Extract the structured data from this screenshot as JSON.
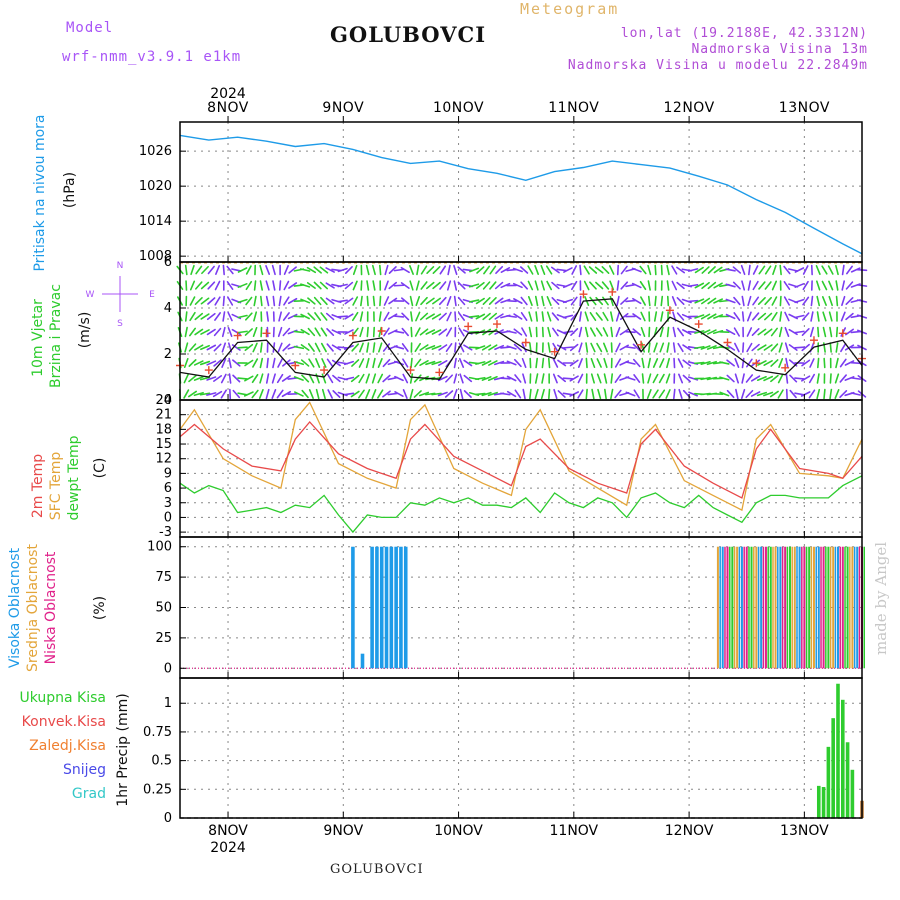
{
  "header": {
    "model_label": "Model",
    "model_name": "wrf-nmm_v3.9.1  e1km",
    "station": "GOLUBOVCI",
    "meteogram": "Meteogram",
    "lonlat": "lon,lat (19.2188E, 42.3312N)",
    "altitude": "Nadmorska Visina 13m",
    "model_altitude": "Nadmorska Visina u modelu 22.2849m"
  },
  "footer": {
    "station": "GOLUBOVCI",
    "made_by": "made by Angel"
  },
  "colors": {
    "pressure": "#1e9be8",
    "wind_speed": "#111111",
    "gust_marks": "#e84a2f",
    "temp2m": "#e84a4a",
    "sfc_temp": "#e3a53a",
    "dewpoint": "#2ecc2e",
    "high_cloud": "#1e9be8",
    "mid_cloud": "#e3a53a",
    "low_cloud": "#e0218a",
    "precip_total": "#2ecc2e",
    "precip_convective": "#e84a4a",
    "precip_large_scale": "#f08030",
    "snow": "#4a4ae8",
    "graupel": "#33c8c8"
  },
  "chart_data": [
    {
      "type": "line",
      "panel": "pressure",
      "ylabel": [
        "Pritisak na nivou mora",
        "(hPa)"
      ],
      "ylim": [
        1007,
        1031
      ],
      "yticks": [
        1008,
        1014,
        1020,
        1026
      ],
      "x_top_year": "2024",
      "x_days": [
        "8NOV",
        "9NOV",
        "10NOV",
        "11NOV",
        "12NOV",
        "13NOV"
      ],
      "grid": true,
      "series": [
        {
          "name": "Pritisak na nivou mora",
          "x": [
            0,
            6,
            12,
            18,
            24,
            30,
            36,
            42,
            48,
            54,
            60,
            66,
            72,
            78,
            84,
            90,
            96,
            102,
            108,
            114,
            120,
            126,
            132,
            138,
            142
          ],
          "values": [
            1028.7,
            1027.9,
            1028.4,
            1027.7,
            1026.8,
            1027.3,
            1026.3,
            1024.9,
            1023.9,
            1024.3,
            1023.0,
            1022.2,
            1021.0,
            1022.5,
            1023.2,
            1024.3,
            1023.7,
            1023.1,
            1021.7,
            1020.2,
            1017.7,
            1015.5,
            1012.8,
            1010.1,
            1008.4
          ]
        }
      ]
    },
    {
      "type": "line",
      "panel": "wind",
      "ylabel": [
        "10m Vjetar",
        "Brzina i Pravac",
        "(m/s)"
      ],
      "compass": [
        "N",
        "W",
        "E",
        "S"
      ],
      "ylim": [
        0,
        6
      ],
      "yticks": [
        0,
        2,
        4,
        6
      ],
      "grid": true,
      "series": [
        {
          "name": "Brzina",
          "x": [
            0,
            6,
            12,
            18,
            24,
            30,
            36,
            42,
            48,
            54,
            60,
            66,
            72,
            78,
            84,
            90,
            96,
            102,
            108,
            114,
            120,
            126,
            132,
            138,
            142
          ],
          "values": [
            1.2,
            1.0,
            2.5,
            2.6,
            1.2,
            1.0,
            2.5,
            2.7,
            1.0,
            0.9,
            2.9,
            3.0,
            2.2,
            1.8,
            4.3,
            4.4,
            2.1,
            3.6,
            3.0,
            2.2,
            1.3,
            1.1,
            2.3,
            2.6,
            1.5
          ]
        }
      ],
      "barbs_note": "colored direction arrows"
    },
    {
      "type": "line",
      "panel": "temperature",
      "ylabel": [
        "2m Temp",
        "SFC Temp",
        "dewpt Temp",
        "(C)"
      ],
      "ylim": [
        -4,
        24
      ],
      "yticks": [
        -3,
        0,
        3,
        6,
        9,
        12,
        15,
        18,
        21,
        24
      ],
      "grid": true,
      "series": [
        {
          "name": "2m Temp",
          "x": [
            0,
            3,
            9,
            15,
            21,
            24,
            27,
            33,
            39,
            45,
            48,
            51,
            57,
            63,
            69,
            72,
            75,
            81,
            87,
            93,
            96,
            99,
            105,
            111,
            117,
            120,
            123,
            129,
            135,
            138,
            142
          ],
          "values": [
            16.5,
            19.0,
            14.0,
            10.5,
            9.5,
            16.0,
            19.5,
            13.0,
            10.0,
            8.0,
            16.0,
            19.0,
            12.5,
            9.5,
            6.5,
            14.5,
            16.0,
            10.0,
            7.0,
            5.0,
            15.0,
            18.0,
            10.5,
            7.0,
            4.0,
            14.0,
            18.0,
            10.0,
            9.0,
            8.0,
            12.5
          ]
        },
        {
          "name": "SFC Temp",
          "x": [
            0,
            3,
            9,
            15,
            21,
            24,
            27,
            33,
            39,
            45,
            48,
            51,
            57,
            63,
            69,
            72,
            75,
            81,
            87,
            93,
            96,
            99,
            105,
            111,
            117,
            120,
            123,
            129,
            135,
            138,
            142
          ],
          "values": [
            18.0,
            22.0,
            12.0,
            8.5,
            6.0,
            20.0,
            23.5,
            11.0,
            8.0,
            6.0,
            20.0,
            23.0,
            10.0,
            7.0,
            4.5,
            18.0,
            22.0,
            9.5,
            6.0,
            2.5,
            16.0,
            19.0,
            7.5,
            4.5,
            1.5,
            16.0,
            19.0,
            9.0,
            8.5,
            8.0,
            16.0
          ]
        },
        {
          "name": "dewpt Temp",
          "x": [
            0,
            3,
            6,
            9,
            12,
            15,
            18,
            21,
            24,
            27,
            30,
            33,
            36,
            39,
            42,
            45,
            48,
            51,
            54,
            57,
            60,
            63,
            66,
            69,
            72,
            75,
            78,
            81,
            84,
            87,
            90,
            93,
            96,
            99,
            102,
            105,
            108,
            111,
            114,
            117,
            120,
            123,
            126,
            129,
            132,
            135,
            138,
            142
          ],
          "values": [
            7.0,
            5.0,
            6.5,
            5.5,
            1.0,
            1.5,
            2.0,
            1.0,
            2.5,
            2.0,
            4.5,
            0.5,
            -3.0,
            0.5,
            0.0,
            0.0,
            3.0,
            2.5,
            4.0,
            3.0,
            4.0,
            2.5,
            2.5,
            2.0,
            4.0,
            1.0,
            5.0,
            3.0,
            2.0,
            4.0,
            3.0,
            0.0,
            4.0,
            5.0,
            3.0,
            2.0,
            4.5,
            2.0,
            0.5,
            -1.0,
            3.0,
            4.5,
            4.5,
            4.0,
            4.0,
            4.0,
            6.5,
            8.5
          ]
        }
      ]
    },
    {
      "type": "bar",
      "panel": "clouds",
      "ylabel": [
        "Visoka Oblacnost",
        "Srednja Oblacnost",
        "Niska Oblacnost",
        "(%)"
      ],
      "ylim": [
        -8,
        108
      ],
      "yticks": [
        0,
        25,
        50,
        75,
        100
      ],
      "grid": true,
      "series": [
        {
          "name": "Visoka Oblacnost",
          "x": [
            36,
            38,
            40,
            41,
            42,
            43,
            44,
            45,
            46,
            47
          ],
          "values": [
            100,
            12,
            100,
            100,
            100,
            100,
            100,
            100,
            100,
            100
          ]
        },
        {
          "name": "Srednja Oblacnost",
          "x": [
            112,
            113,
            114,
            115,
            116,
            117,
            118,
            119,
            120,
            121,
            122,
            123,
            124,
            125,
            126,
            127,
            128,
            129,
            130,
            131,
            132,
            133,
            134,
            135,
            136,
            137,
            138,
            139,
            140,
            141,
            142
          ],
          "values": [
            100,
            100,
            100,
            100,
            100,
            100,
            100,
            100,
            100,
            100,
            100,
            100,
            100,
            100,
            100,
            100,
            100,
            100,
            100,
            100,
            100,
            100,
            100,
            100,
            100,
            100,
            100,
            100,
            100,
            100,
            100
          ]
        }
      ]
    },
    {
      "type": "bar",
      "panel": "precipitation",
      "ylabel": [
        "1hr Precip (mm)"
      ],
      "legend": [
        "Ukupna Kisa",
        "Konvek.Kisa",
        "Zaledj.Kisa",
        "Snijeg",
        "Grad"
      ],
      "ylim": [
        0,
        1.22
      ],
      "yticks": [
        0,
        0.25,
        0.5,
        0.75,
        1
      ],
      "x_bottom_days": [
        "8NOV",
        "9NOV",
        "10NOV",
        "11NOV",
        "12NOV",
        "13NOV"
      ],
      "x_bottom_year": "2024",
      "grid": true,
      "series": [
        {
          "name": "Ukupna Kisa",
          "x": [
            133,
            134,
            135,
            136,
            137,
            138,
            139,
            140,
            142
          ],
          "values": [
            0.28,
            0.27,
            0.62,
            0.87,
            1.17,
            1.03,
            0.66,
            0.42,
            0.15
          ]
        }
      ]
    }
  ]
}
